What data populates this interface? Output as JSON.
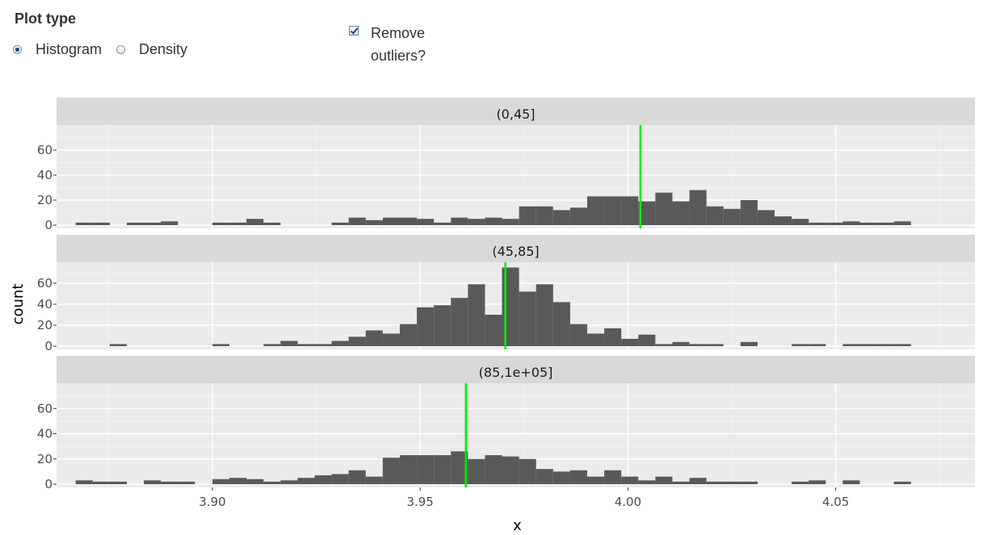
{
  "controls": {
    "plot_type_label": "Plot type",
    "options": [
      {
        "label": "Histogram",
        "selected": true
      },
      {
        "label": "Density",
        "selected": false
      }
    ],
    "remove_outliers_label": "Remove outliers?",
    "remove_outliers_checked": true
  },
  "chart_data": {
    "type": "bar",
    "xlabel": "x",
    "ylabel": "count",
    "xlim": [
      3.8625,
      4.0835
    ],
    "x_ticks": [
      3.9,
      3.95,
      4.0,
      4.05
    ],
    "x_tick_labels": [
      "3.90",
      "3.95",
      "4.00",
      "4.05"
    ],
    "y_ticks": [
      0,
      20,
      40,
      60
    ],
    "y_tick_labels": [
      "0",
      "20",
      "40",
      "60"
    ],
    "ylim": [
      0,
      80
    ],
    "bin_width": 0.0041,
    "bar_color": "#595959",
    "line_color": "#00ee00",
    "panel_bg": "#ebebeb",
    "strip_bg": "#d9d9d9",
    "panels": [
      {
        "strip": "(0,45]",
        "vline": 4.003,
        "bins": [
          {
            "x": 3.8671,
            "count": 2
          },
          {
            "x": 3.8712,
            "count": 2
          },
          {
            "x": 3.8794,
            "count": 2
          },
          {
            "x": 3.8835,
            "count": 2
          },
          {
            "x": 3.8876,
            "count": 3
          },
          {
            "x": 3.9,
            "count": 2
          },
          {
            "x": 3.9041,
            "count": 2
          },
          {
            "x": 3.9082,
            "count": 5
          },
          {
            "x": 3.9123,
            "count": 2
          },
          {
            "x": 3.9287,
            "count": 2
          },
          {
            "x": 3.9328,
            "count": 6
          },
          {
            "x": 3.9369,
            "count": 4
          },
          {
            "x": 3.941,
            "count": 6
          },
          {
            "x": 3.9451,
            "count": 6
          },
          {
            "x": 3.9492,
            "count": 5
          },
          {
            "x": 3.9533,
            "count": 2
          },
          {
            "x": 3.9574,
            "count": 6
          },
          {
            "x": 3.9615,
            "count": 5
          },
          {
            "x": 3.9656,
            "count": 6
          },
          {
            "x": 3.9697,
            "count": 5
          },
          {
            "x": 3.9738,
            "count": 15
          },
          {
            "x": 3.9779,
            "count": 15
          },
          {
            "x": 3.982,
            "count": 12
          },
          {
            "x": 3.9861,
            "count": 14
          },
          {
            "x": 3.9902,
            "count": 23
          },
          {
            "x": 3.9943,
            "count": 23
          },
          {
            "x": 3.9984,
            "count": 23
          },
          {
            "x": 4.0025,
            "count": 19
          },
          {
            "x": 4.0066,
            "count": 26
          },
          {
            "x": 4.0107,
            "count": 19
          },
          {
            "x": 4.0148,
            "count": 28
          },
          {
            "x": 4.0189,
            "count": 15
          },
          {
            "x": 4.023,
            "count": 13
          },
          {
            "x": 4.0271,
            "count": 20
          },
          {
            "x": 4.0312,
            "count": 12
          },
          {
            "x": 4.0353,
            "count": 7
          },
          {
            "x": 4.0394,
            "count": 5
          },
          {
            "x": 4.0435,
            "count": 2
          },
          {
            "x": 4.0476,
            "count": 2
          },
          {
            "x": 4.0517,
            "count": 3
          },
          {
            "x": 4.0558,
            "count": 2
          },
          {
            "x": 4.0599,
            "count": 2
          },
          {
            "x": 4.064,
            "count": 3
          }
        ]
      },
      {
        "strip": "(45,85]",
        "vline": 3.9705,
        "bins": [
          {
            "x": 3.8753,
            "count": 2
          },
          {
            "x": 3.9,
            "count": 2
          },
          {
            "x": 3.9123,
            "count": 2
          },
          {
            "x": 3.9164,
            "count": 5
          },
          {
            "x": 3.9205,
            "count": 2
          },
          {
            "x": 3.9246,
            "count": 2
          },
          {
            "x": 3.9287,
            "count": 5
          },
          {
            "x": 3.9328,
            "count": 9
          },
          {
            "x": 3.9369,
            "count": 15
          },
          {
            "x": 3.941,
            "count": 12
          },
          {
            "x": 3.9451,
            "count": 21
          },
          {
            "x": 3.9492,
            "count": 37
          },
          {
            "x": 3.9533,
            "count": 39
          },
          {
            "x": 3.9574,
            "count": 46
          },
          {
            "x": 3.9615,
            "count": 59
          },
          {
            "x": 3.9656,
            "count": 30
          },
          {
            "x": 3.9697,
            "count": 75
          },
          {
            "x": 3.9738,
            "count": 52
          },
          {
            "x": 3.9779,
            "count": 59
          },
          {
            "x": 3.982,
            "count": 42
          },
          {
            "x": 3.9861,
            "count": 21
          },
          {
            "x": 3.9902,
            "count": 12
          },
          {
            "x": 3.9943,
            "count": 17
          },
          {
            "x": 3.9984,
            "count": 7
          },
          {
            "x": 4.0025,
            "count": 11
          },
          {
            "x": 4.0066,
            "count": 2
          },
          {
            "x": 4.0107,
            "count": 4
          },
          {
            "x": 4.0148,
            "count": 2
          },
          {
            "x": 4.0189,
            "count": 2
          },
          {
            "x": 4.0271,
            "count": 4
          },
          {
            "x": 4.0394,
            "count": 2
          },
          {
            "x": 4.0435,
            "count": 2
          },
          {
            "x": 4.0517,
            "count": 2
          },
          {
            "x": 4.0558,
            "count": 2
          },
          {
            "x": 4.0599,
            "count": 2
          },
          {
            "x": 4.064,
            "count": 2
          }
        ]
      },
      {
        "strip": "(85,1e+05]",
        "vline": 3.961,
        "bins": [
          {
            "x": 3.8671,
            "count": 3
          },
          {
            "x": 3.8712,
            "count": 2
          },
          {
            "x": 3.8753,
            "count": 2
          },
          {
            "x": 3.8835,
            "count": 3
          },
          {
            "x": 3.8876,
            "count": 2
          },
          {
            "x": 3.8917,
            "count": 2
          },
          {
            "x": 3.9,
            "count": 4
          },
          {
            "x": 3.9041,
            "count": 5
          },
          {
            "x": 3.9082,
            "count": 4
          },
          {
            "x": 3.9123,
            "count": 2
          },
          {
            "x": 3.9164,
            "count": 3
          },
          {
            "x": 3.9205,
            "count": 5
          },
          {
            "x": 3.9246,
            "count": 7
          },
          {
            "x": 3.9287,
            "count": 8
          },
          {
            "x": 3.9328,
            "count": 11
          },
          {
            "x": 3.9369,
            "count": 6
          },
          {
            "x": 3.941,
            "count": 21
          },
          {
            "x": 3.9451,
            "count": 23
          },
          {
            "x": 3.9492,
            "count": 23
          },
          {
            "x": 3.9533,
            "count": 23
          },
          {
            "x": 3.9574,
            "count": 26
          },
          {
            "x": 3.9615,
            "count": 20
          },
          {
            "x": 3.9656,
            "count": 23
          },
          {
            "x": 3.9697,
            "count": 22
          },
          {
            "x": 3.9738,
            "count": 20
          },
          {
            "x": 3.9779,
            "count": 12
          },
          {
            "x": 3.982,
            "count": 10
          },
          {
            "x": 3.9861,
            "count": 11
          },
          {
            "x": 3.9902,
            "count": 6
          },
          {
            "x": 3.9943,
            "count": 11
          },
          {
            "x": 3.9984,
            "count": 6
          },
          {
            "x": 4.0025,
            "count": 3
          },
          {
            "x": 4.0066,
            "count": 6
          },
          {
            "x": 4.0107,
            "count": 2
          },
          {
            "x": 4.0148,
            "count": 5
          },
          {
            "x": 4.0189,
            "count": 2
          },
          {
            "x": 4.023,
            "count": 2
          },
          {
            "x": 4.0271,
            "count": 2
          },
          {
            "x": 4.0394,
            "count": 2
          },
          {
            "x": 4.0435,
            "count": 3
          },
          {
            "x": 4.0517,
            "count": 3
          },
          {
            "x": 4.064,
            "count": 2
          }
        ]
      }
    ]
  }
}
